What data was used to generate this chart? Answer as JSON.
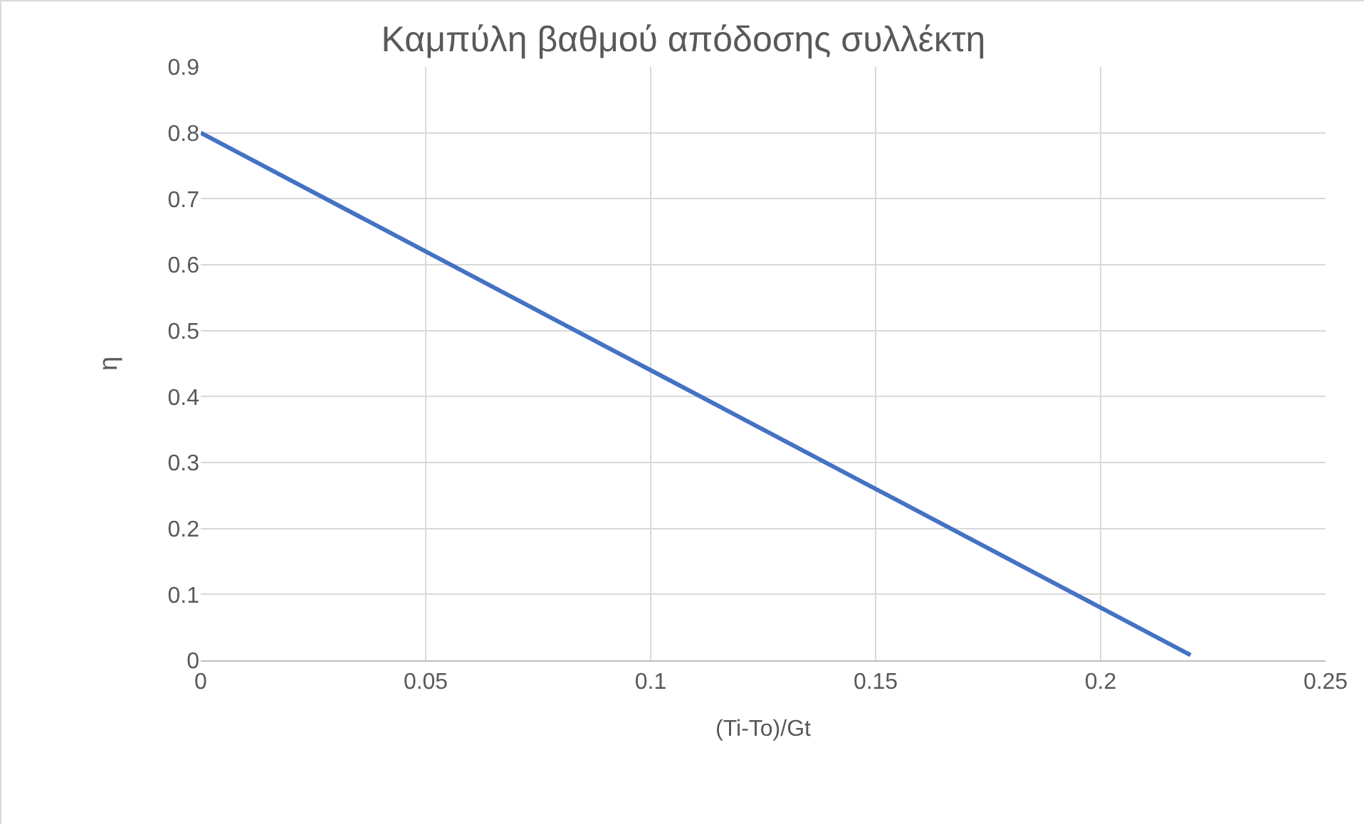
{
  "chart_data": {
    "type": "line",
    "title": "Καμπύλη βαθμού απόδοσης συλλέκτη",
    "xlabel": "(Ti-To)/Gt",
    "ylabel": "η",
    "x": [
      0,
      0.05,
      0.1,
      0.15,
      0.2,
      0.22
    ],
    "series": [
      {
        "color": "#4472c4",
        "values": [
          0.8,
          0.62,
          0.44,
          0.26,
          0.08,
          0.008
        ]
      }
    ],
    "xlim": [
      0,
      0.25
    ],
    "xticks": [
      0,
      0.05,
      0.1,
      0.15,
      0.2,
      0.25
    ],
    "ylim": [
      0,
      0.9
    ],
    "yticks": [
      0,
      0.1,
      0.2,
      0.3,
      0.4,
      0.5,
      0.6,
      0.7,
      0.8,
      0.9
    ],
    "grid": true,
    "marker": "none",
    "line_style": "solid"
  }
}
